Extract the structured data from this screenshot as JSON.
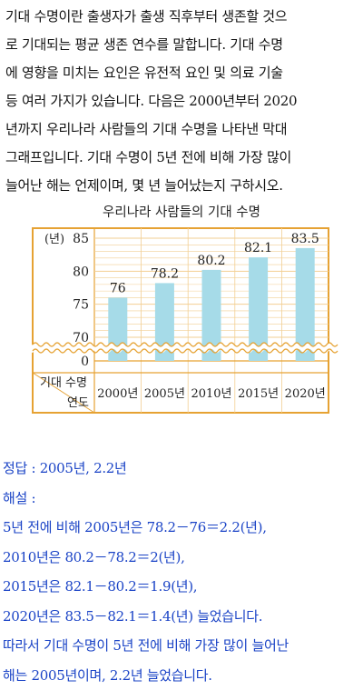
{
  "problem": {
    "lines": [
      "기대 수명이란 출생자가 출생 직후부터 생존할 것으",
      "로 기대되는 평균 생존 연수를 말합니다. 기대 수명",
      "에 영향을 미치는 요인은 유전적 요인 및 의료 기술",
      "등 여러 가지가 있습니다. 다음은 2000년부터 2020",
      "년까지 우리나라 사람들의 기대 수명을 나타낸 막대",
      "그래프입니다. 기대 수명이 5년 전에 비해 가장 많이",
      "늘어난 해는 언제이며, 몇 년 늘어났는지 구하시오."
    ]
  },
  "chart_data": {
    "type": "bar",
    "title": "우리나라 사람들의 기대 수명",
    "unit_label": "(년)",
    "categories": [
      "2000년",
      "2005년",
      "2010년",
      "2015년",
      "2020년"
    ],
    "values": [
      76,
      78.2,
      80.2,
      82.1,
      83.5
    ],
    "value_labels": [
      "76",
      "78.2",
      "80.2",
      "82.1",
      "83.5"
    ],
    "y_ticks": [
      "85",
      "80",
      "75",
      "70",
      "0"
    ],
    "ylim_shown": [
      70,
      85
    ],
    "axis_break": true,
    "header_row_label": "기대 수명",
    "header_col_label": "연도",
    "bar_color": "#a6dbe8",
    "frame_color": "#e6a233",
    "grid": true
  },
  "answer": {
    "lines": [
      "정답 : 2005년, 2.2년",
      "해설 :",
      "5년 전에 비해 2005년은 78.2－76＝2.2(년),",
      "2010년은 80.2－78.2＝2(년),",
      "2015년은 82.1－80.2＝1.9(년),",
      "2020년은 83.5－82.1＝1.4(년) 늘었습니다.",
      "따라서 기대 수명이 5년 전에 비해 가장 많이 늘어난",
      "해는 2005년이며, 2.2년 늘었습니다."
    ]
  }
}
